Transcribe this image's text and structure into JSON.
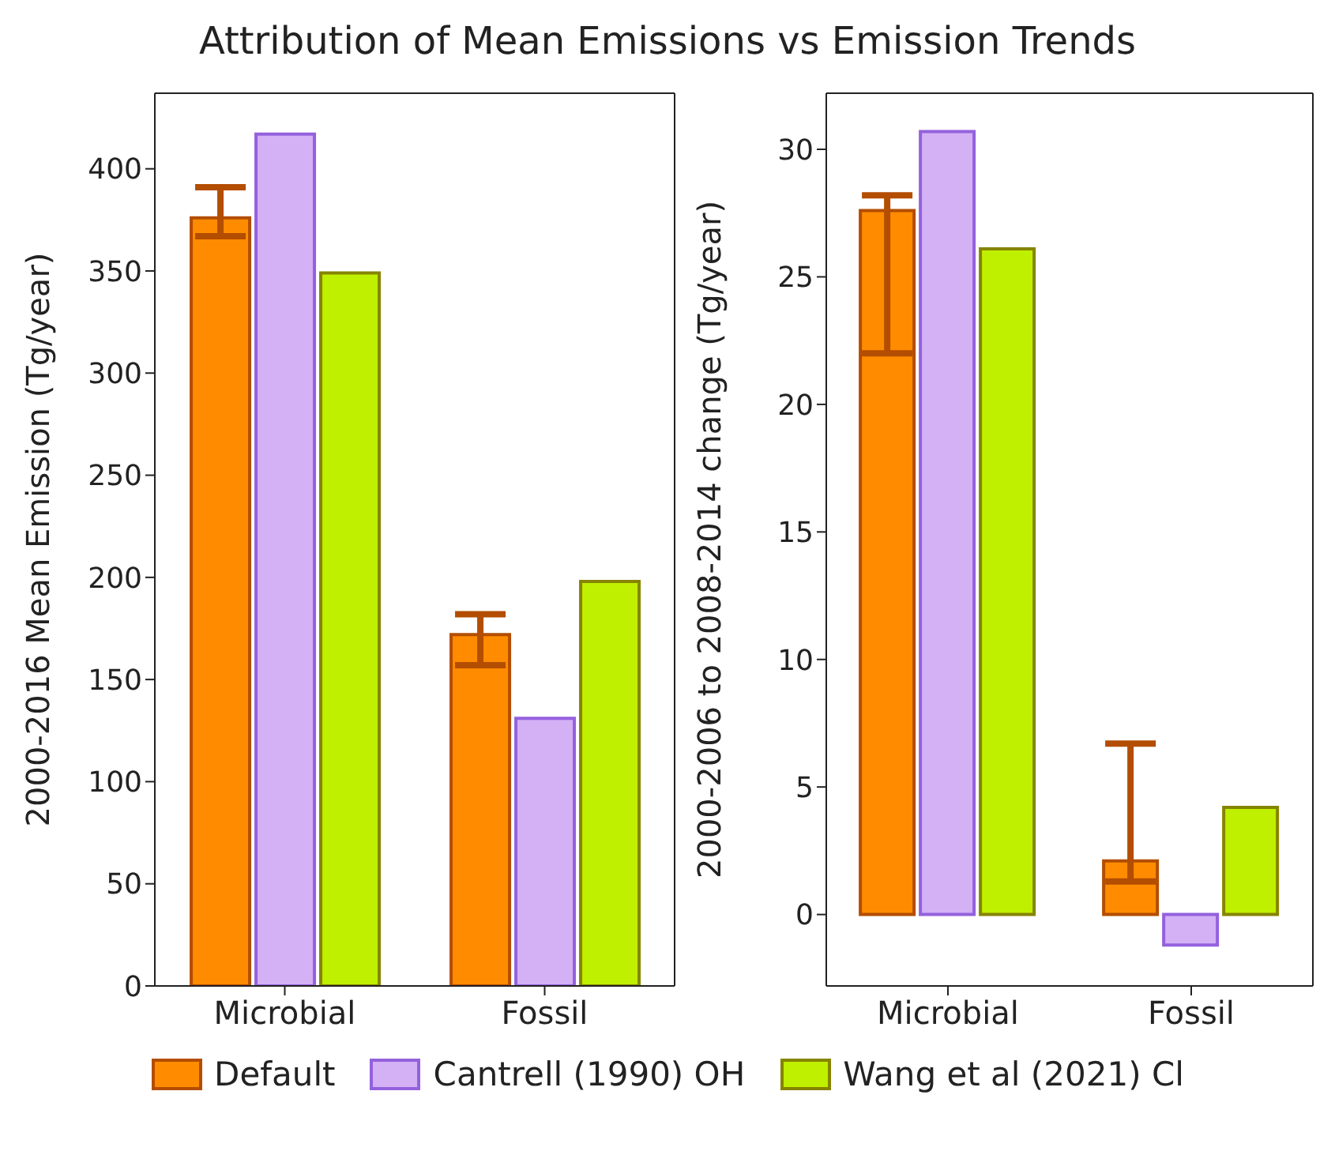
{
  "chart_data": [
    {
      "type": "bar",
      "title": "Attribution of Mean Emissions vs Emission Trends",
      "ylabel": "2000-2016 Mean Emission (Tg/year)",
      "categories": [
        "Microbial",
        "Fossil"
      ],
      "series": [
        {
          "name": "Default",
          "color": "#ff8c00",
          "values": [
            376,
            172
          ],
          "errors": [
            [
              367,
              391
            ],
            [
              157,
              182
            ]
          ]
        },
        {
          "name": "Cantrell (1990) OH",
          "color": "#d4b0f5",
          "values": [
            417,
            131
          ]
        },
        {
          "name": "Wang et al (2021) Cl",
          "color": "#bff000",
          "values": [
            349,
            198
          ]
        }
      ],
      "ylim": [
        0,
        437
      ],
      "yticks": [
        0,
        50,
        100,
        150,
        200,
        250,
        300,
        350,
        400
      ],
      "grid": false,
      "legend": "bottom"
    },
    {
      "type": "bar",
      "ylabel": "2000-2006 to 2008-2014 change (Tg/year)",
      "categories": [
        "Microbial",
        "Fossil"
      ],
      "series": [
        {
          "color": "#ff8c00",
          "values": [
            27.6,
            2.1
          ],
          "errors": [
            [
              22.0,
              28.2
            ],
            [
              1.3,
              6.7
            ]
          ]
        },
        {
          "color": "#d4b0f5",
          "values": [
            30.7,
            -1.2
          ]
        },
        {
          "color": "#bff000",
          "values": [
            26.1,
            4.2
          ]
        }
      ],
      "ylim": [
        -2.8,
        32.2
      ],
      "yticks": [
        0,
        5,
        10,
        15,
        20,
        25,
        30
      ],
      "grid": false
    }
  ]
}
